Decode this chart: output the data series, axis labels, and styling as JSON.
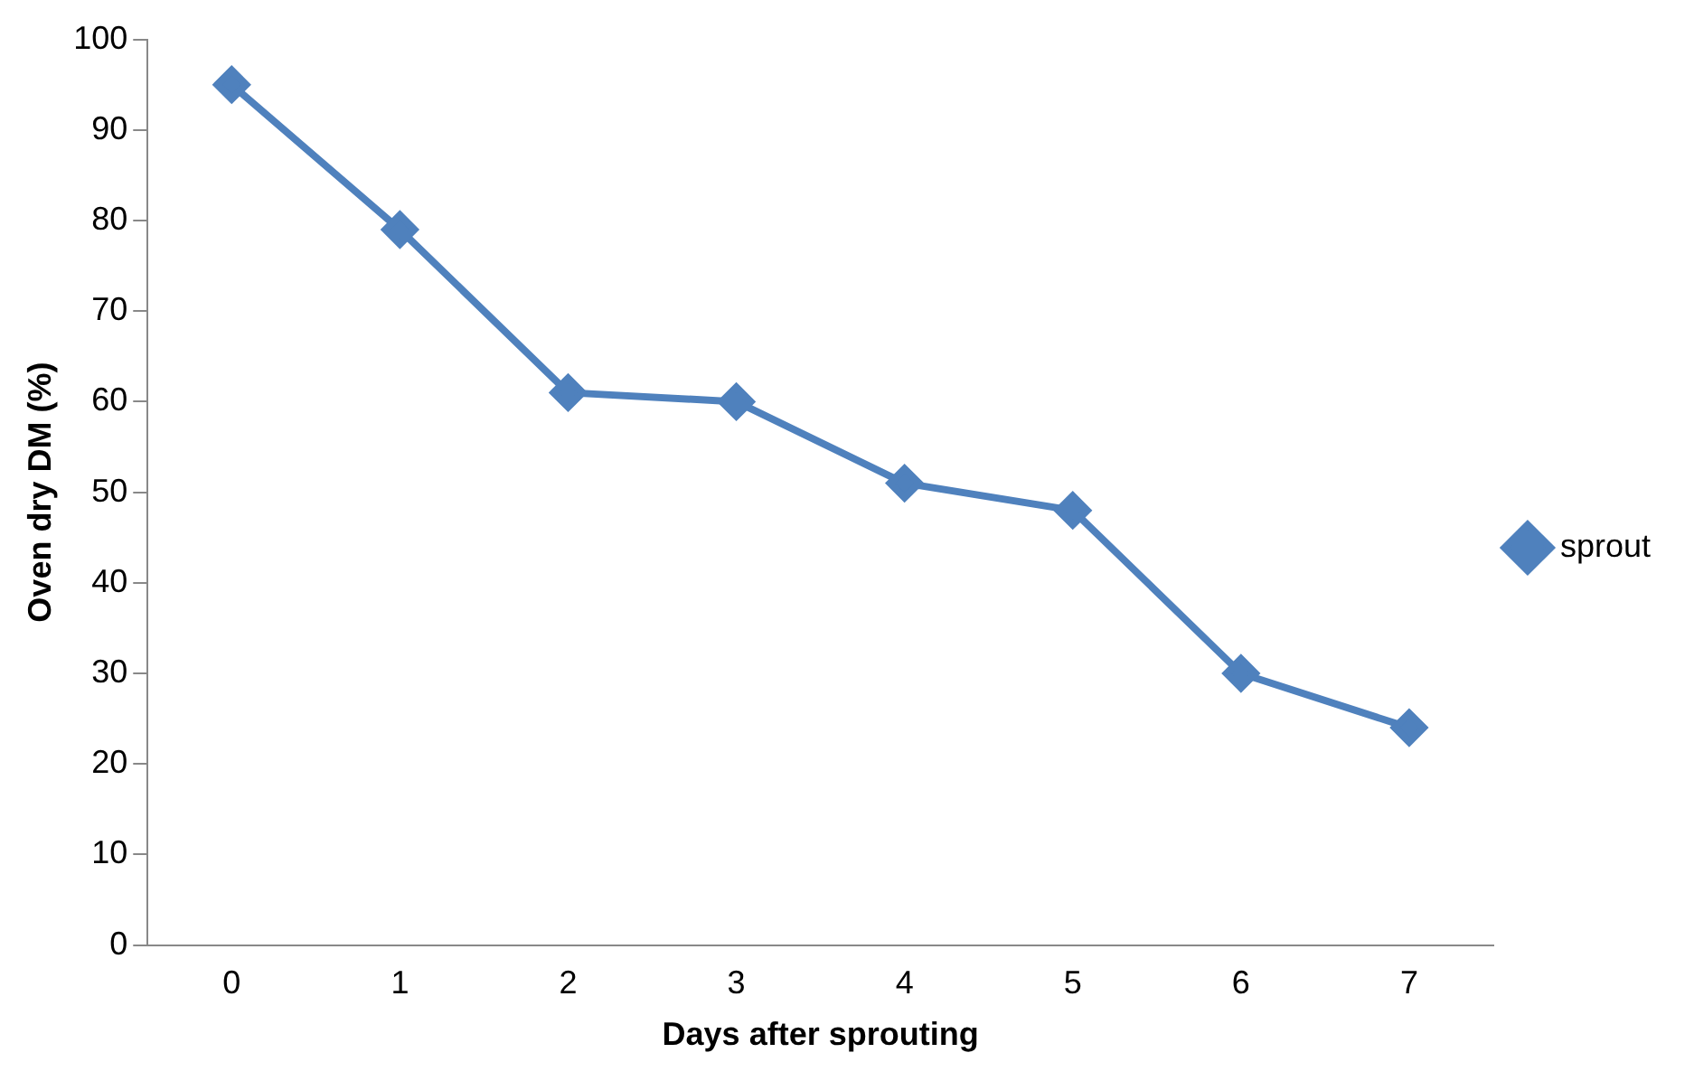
{
  "chart_data": {
    "type": "line",
    "xlabel": "Days after sprouting",
    "ylabel": "Oven dry DM (%)",
    "categories": [
      "0",
      "1",
      "2",
      "3",
      "4",
      "5",
      "6",
      "7"
    ],
    "series": [
      {
        "name": "sprout",
        "color": "#4f81bd",
        "values": [
          95,
          79,
          61,
          60,
          51,
          48,
          30,
          24
        ]
      }
    ],
    "ylim": [
      0,
      100
    ],
    "yticks": [
      0,
      10,
      20,
      30,
      40,
      50,
      60,
      70,
      80,
      90,
      100
    ],
    "grid": false,
    "legend": "right",
    "marker": "diamond",
    "line_style": "solid"
  }
}
